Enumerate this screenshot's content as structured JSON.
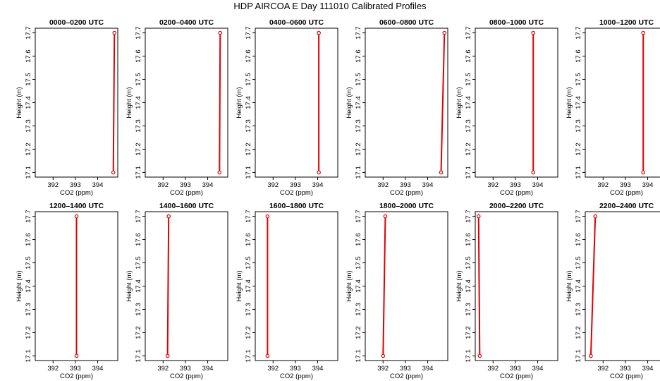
{
  "title": "HDP AIRCOA E  Day 111010  Calibrated Profiles",
  "colors": {
    "profile": "#e00000",
    "axis": "#000000",
    "background": "#ffffff"
  },
  "chart_data": [
    {
      "type": "line",
      "title": "0000–0200 UTC",
      "xlabel": "CO2 (ppm)",
      "ylabel": "Height (m)",
      "xlim": [
        391.2,
        394.9
      ],
      "ylim": [
        17.08,
        17.72
      ],
      "xticks": [
        "392",
        "393",
        "394"
      ],
      "yticks": [
        "17.1",
        "17.2",
        "17.3",
        "17.4",
        "17.5",
        "17.6",
        "17.7"
      ],
      "grid": false,
      "series": [
        {
          "x": [
            394.7,
            394.75
          ],
          "y": [
            17.1,
            17.7
          ]
        }
      ]
    },
    {
      "type": "line",
      "title": "0200–0400 UTC",
      "xlabel": "CO2 (ppm)",
      "ylabel": "Height (m)",
      "xlim": [
        391.2,
        394.9
      ],
      "ylim": [
        17.08,
        17.72
      ],
      "xticks": [
        "392",
        "393",
        "394"
      ],
      "yticks": [
        "17.1",
        "17.2",
        "17.3",
        "17.4",
        "17.5",
        "17.6",
        "17.7"
      ],
      "grid": false,
      "series": [
        {
          "x": [
            394.53,
            394.56
          ],
          "y": [
            17.1,
            17.7
          ]
        }
      ]
    },
    {
      "type": "line",
      "title": "0400–0600 UTC",
      "xlabel": "CO2 (ppm)",
      "ylabel": "Height (m)",
      "xlim": [
        391.2,
        394.9
      ],
      "ylim": [
        17.08,
        17.72
      ],
      "xticks": [
        "392",
        "393",
        "394"
      ],
      "yticks": [
        "17.1",
        "17.2",
        "17.3",
        "17.4",
        "17.5",
        "17.6",
        "17.7"
      ],
      "grid": false,
      "series": [
        {
          "x": [
            394.05,
            394.05
          ],
          "y": [
            17.1,
            17.7
          ]
        }
      ]
    },
    {
      "type": "line",
      "title": "0600–0800 UTC",
      "xlabel": "CO2 (ppm)",
      "ylabel": "Height (m)",
      "xlim": [
        391.2,
        394.9
      ],
      "ylim": [
        17.08,
        17.72
      ],
      "xticks": [
        "392",
        "393",
        "394"
      ],
      "yticks": [
        "17.1",
        "17.2",
        "17.3",
        "17.4",
        "17.5",
        "17.6",
        "17.7"
      ],
      "grid": false,
      "series": [
        {
          "x": [
            394.6,
            394.75
          ],
          "y": [
            17.1,
            17.7
          ]
        }
      ]
    },
    {
      "type": "line",
      "title": "0800–1000 UTC",
      "xlabel": "CO2 (ppm)",
      "ylabel": "Height (m)",
      "xlim": [
        391.2,
        394.9
      ],
      "ylim": [
        17.08,
        17.72
      ],
      "xticks": [
        "392",
        "393",
        "394"
      ],
      "yticks": [
        "17.1",
        "17.2",
        "17.3",
        "17.4",
        "17.5",
        "17.6",
        "17.7"
      ],
      "grid": false,
      "series": [
        {
          "x": [
            393.8,
            393.8
          ],
          "y": [
            17.1,
            17.7
          ]
        }
      ]
    },
    {
      "type": "line",
      "title": "1000–1200 UTC",
      "xlabel": "CO2 (ppm)",
      "ylabel": "Height (m)",
      "xlim": [
        391.2,
        394.9
      ],
      "ylim": [
        17.08,
        17.72
      ],
      "xticks": [
        "392",
        "393",
        "394"
      ],
      "yticks": [
        "17.1",
        "17.2",
        "17.3",
        "17.4",
        "17.5",
        "17.6",
        "17.7"
      ],
      "grid": false,
      "series": [
        {
          "x": [
            393.8,
            393.8
          ],
          "y": [
            17.1,
            17.7
          ]
        }
      ]
    },
    {
      "type": "line",
      "title": "1200–1400 UTC",
      "xlabel": "CO2 (ppm)",
      "ylabel": "Height (m)",
      "xlim": [
        391.2,
        394.9
      ],
      "ylim": [
        17.08,
        17.72
      ],
      "xticks": [
        "392",
        "393",
        "394"
      ],
      "yticks": [
        "17.1",
        "17.2",
        "17.3",
        "17.4",
        "17.5",
        "17.6",
        "17.7"
      ],
      "grid": false,
      "series": [
        {
          "x": [
            393.05,
            393.05
          ],
          "y": [
            17.1,
            17.7
          ]
        }
      ]
    },
    {
      "type": "line",
      "title": "1400–1600 UTC",
      "xlabel": "CO2 (ppm)",
      "ylabel": "Height (m)",
      "xlim": [
        391.2,
        394.9
      ],
      "ylim": [
        17.08,
        17.72
      ],
      "xticks": [
        "392",
        "393",
        "394"
      ],
      "yticks": [
        "17.1",
        "17.2",
        "17.3",
        "17.4",
        "17.5",
        "17.6",
        "17.7"
      ],
      "grid": false,
      "series": [
        {
          "x": [
            392.2,
            392.25
          ],
          "y": [
            17.1,
            17.7
          ]
        }
      ]
    },
    {
      "type": "line",
      "title": "1600–1800 UTC",
      "xlabel": "CO2 (ppm)",
      "ylabel": "Height (m)",
      "xlim": [
        391.2,
        394.9
      ],
      "ylim": [
        17.08,
        17.72
      ],
      "xticks": [
        "392",
        "393",
        "394"
      ],
      "yticks": [
        "17.1",
        "17.2",
        "17.3",
        "17.4",
        "17.5",
        "17.6",
        "17.7"
      ],
      "grid": false,
      "series": [
        {
          "x": [
            391.75,
            391.75
          ],
          "y": [
            17.1,
            17.7
          ]
        }
      ]
    },
    {
      "type": "line",
      "title": "1800–2000 UTC",
      "xlabel": "CO2 (ppm)",
      "ylabel": "Height (m)",
      "xlim": [
        391.2,
        394.9
      ],
      "ylim": [
        17.08,
        17.72
      ],
      "xticks": [
        "392",
        "393",
        "394"
      ],
      "yticks": [
        "17.1",
        "17.2",
        "17.3",
        "17.4",
        "17.5",
        "17.6",
        "17.7"
      ],
      "grid": false,
      "series": [
        {
          "x": [
            392.0,
            392.1
          ],
          "y": [
            17.1,
            17.7
          ]
        }
      ]
    },
    {
      "type": "line",
      "title": "2000–2200 UTC",
      "xlabel": "CO2 (ppm)",
      "ylabel": "Height (m)",
      "xlim": [
        391.2,
        394.9
      ],
      "ylim": [
        17.08,
        17.72
      ],
      "xticks": [
        "392",
        "393",
        "394"
      ],
      "yticks": [
        "17.1",
        "17.2",
        "17.3",
        "17.4",
        "17.5",
        "17.6",
        "17.7"
      ],
      "grid": false,
      "series": [
        {
          "x": [
            391.4,
            391.35
          ],
          "y": [
            17.1,
            17.7
          ]
        }
      ]
    },
    {
      "type": "line",
      "title": "2200–2400 UTC",
      "xlabel": "CO2 (ppm)",
      "ylabel": "Height (m)",
      "xlim": [
        391.2,
        394.9
      ],
      "ylim": [
        17.08,
        17.72
      ],
      "xticks": [
        "392",
        "393",
        "394"
      ],
      "yticks": [
        "17.1",
        "17.2",
        "17.3",
        "17.4",
        "17.5",
        "17.6",
        "17.7"
      ],
      "grid": false,
      "series": [
        {
          "x": [
            391.45,
            391.65
          ],
          "y": [
            17.1,
            17.7
          ]
        }
      ]
    }
  ]
}
